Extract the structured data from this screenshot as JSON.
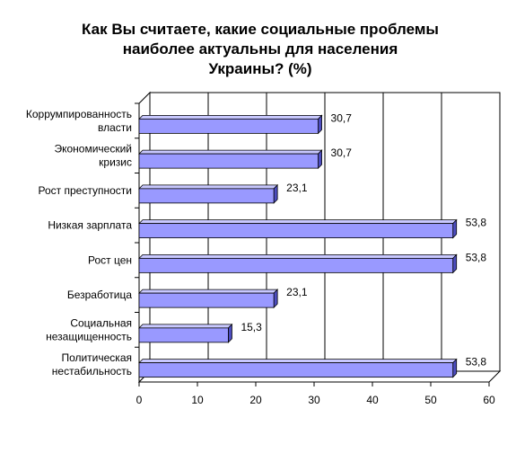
{
  "chart_data": {
    "type": "bar",
    "orientation": "horizontal",
    "title_lines": [
      "Как Вы считаете, какие социальные проблемы",
      "наиболее актуальны для населения",
      "Украины? (%)"
    ],
    "categories": [
      [
        "Коррумпированность",
        "власти"
      ],
      [
        "Экономический",
        "кризис"
      ],
      [
        "Рост преступности"
      ],
      [
        "Низкая зарплата"
      ],
      [
        "Рост цен"
      ],
      [
        "Безработица"
      ],
      [
        "Социальная",
        "незащищенность"
      ],
      [
        "Политическая",
        "нестабильность"
      ]
    ],
    "values": [
      30.7,
      30.7,
      23.1,
      53.8,
      53.8,
      23.1,
      15.3,
      53.8
    ],
    "value_labels": [
      "30,7",
      "30,7",
      "23,1",
      "53,8",
      "53,8",
      "23,1",
      "15,3",
      "53,8"
    ],
    "xlim": [
      0,
      60
    ],
    "xticks": [
      0,
      10,
      20,
      30,
      40,
      50,
      60
    ],
    "grid": "vertical",
    "legend": "none",
    "colors": {
      "bar": "#9999ff",
      "bar_top": "#c8c8ff",
      "bar_side": "#4d4dbf",
      "wall": "#ffffff",
      "grid": "#000000"
    }
  }
}
